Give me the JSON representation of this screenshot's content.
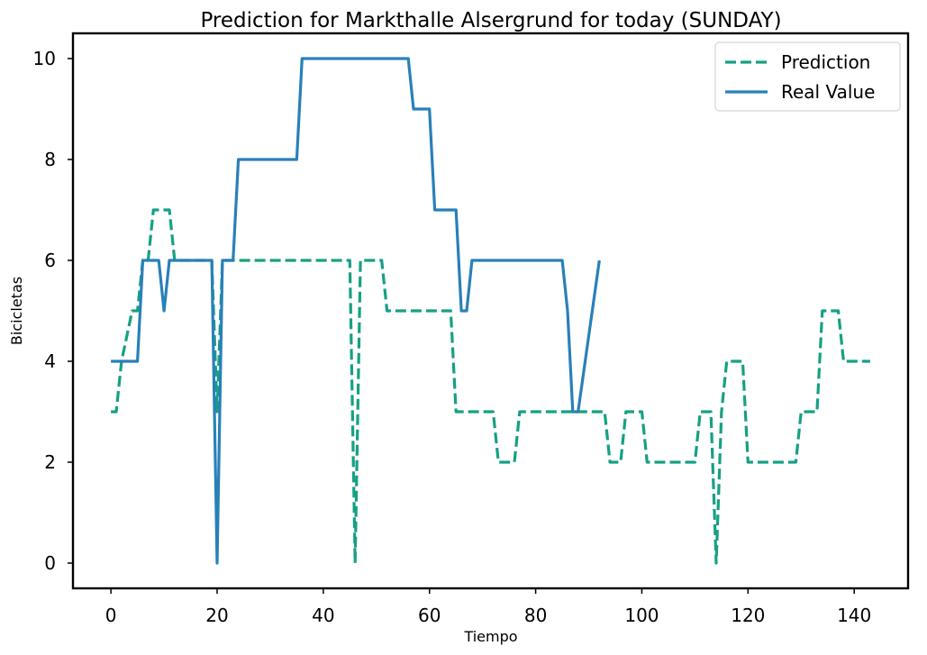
{
  "chart_data": {
    "type": "line",
    "title": "Prediction for Markthalle Alsergrund for today (SUNDAY)",
    "xlabel": "Tiempo",
    "ylabel": "Bicicletas",
    "xlim": [
      -7.15,
      150.15
    ],
    "ylim": [
      -0.5,
      10.5
    ],
    "xticks": [
      0,
      20,
      40,
      60,
      80,
      100,
      120,
      140
    ],
    "yticks": [
      0,
      2,
      4,
      6,
      8,
      10
    ],
    "grid": false,
    "legend_position": "top-right",
    "series": [
      {
        "name": "Prediction",
        "color": "#16a085",
        "style": "dashed",
        "points": [
          [
            0,
            3
          ],
          [
            1,
            3
          ],
          [
            2,
            4
          ],
          [
            4,
            5
          ],
          [
            5,
            5
          ],
          [
            6,
            6
          ],
          [
            7,
            6
          ],
          [
            8,
            7
          ],
          [
            10,
            7
          ],
          [
            11,
            7
          ],
          [
            12,
            6
          ],
          [
            18,
            6
          ],
          [
            19,
            6
          ],
          [
            20,
            3
          ],
          [
            21,
            6
          ],
          [
            45,
            6
          ],
          [
            46,
            0
          ],
          [
            47,
            6
          ],
          [
            51,
            6
          ],
          [
            52,
            5
          ],
          [
            64,
            5
          ],
          [
            65,
            3
          ],
          [
            72,
            3
          ],
          [
            73,
            2
          ],
          [
            76,
            2
          ],
          [
            77,
            3
          ],
          [
            93,
            3
          ],
          [
            94,
            2
          ],
          [
            96,
            2
          ],
          [
            97,
            3
          ],
          [
            100,
            3
          ],
          [
            101,
            2
          ],
          [
            110,
            2
          ],
          [
            111,
            3
          ],
          [
            113,
            3
          ],
          [
            114,
            0
          ],
          [
            115,
            3
          ],
          [
            116,
            4
          ],
          [
            119,
            4
          ],
          [
            120,
            2
          ],
          [
            129,
            2
          ],
          [
            130,
            3
          ],
          [
            133,
            3
          ],
          [
            134,
            5
          ],
          [
            137,
            5
          ],
          [
            138,
            4
          ],
          [
            143,
            4
          ]
        ]
      },
      {
        "name": "Real Value",
        "color": "#2980b9",
        "style": "solid",
        "points": [
          [
            0,
            4
          ],
          [
            5,
            4
          ],
          [
            6,
            6
          ],
          [
            9,
            6
          ],
          [
            10,
            5
          ],
          [
            11,
            6
          ],
          [
            19,
            6
          ],
          [
            20,
            0
          ],
          [
            21,
            6
          ],
          [
            23,
            6
          ],
          [
            24,
            8
          ],
          [
            35,
            8
          ],
          [
            36,
            10
          ],
          [
            56,
            10
          ],
          [
            57,
            9
          ],
          [
            60,
            9
          ],
          [
            61,
            7
          ],
          [
            65,
            7
          ],
          [
            66,
            5
          ],
          [
            67,
            5
          ],
          [
            68,
            6
          ],
          [
            85,
            6
          ],
          [
            86,
            5
          ],
          [
            87,
            3
          ],
          [
            88,
            3
          ],
          [
            92,
            6
          ]
        ]
      }
    ]
  }
}
